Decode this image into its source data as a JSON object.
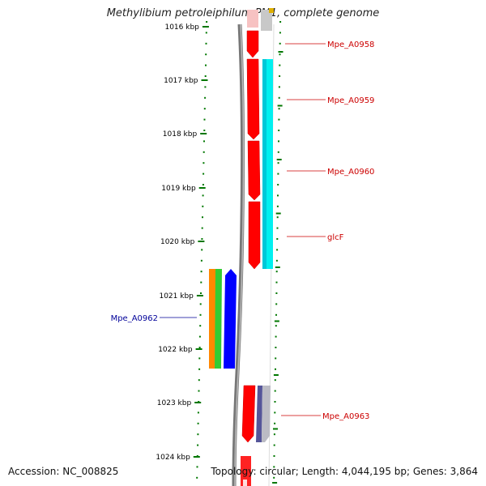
{
  "title": "Methylibium petroleiphilum PM1, complete genome",
  "accession": "Accession: NC_008825",
  "topology": "Topology: circular; Length: 4,044,195 bp; Genes: 3,864",
  "ruler": {
    "labels": [
      "1016 kbp",
      "1017 kbp",
      "1018 kbp",
      "1019 kbp",
      "1020 kbp",
      "1021 kbp",
      "1022 kbp",
      "1023 kbp",
      "1024 kbp"
    ]
  },
  "genes": [
    {
      "label": "Mpe_A0958",
      "color": "#cc0000"
    },
    {
      "label": "Mpe_A0959",
      "color": "#cc0000"
    },
    {
      "label": "Mpe_A0960",
      "color": "#cc0000"
    },
    {
      "label": "glcF",
      "color": "#cc0000"
    },
    {
      "label": "Mpe_A0962",
      "color": "#000099"
    },
    {
      "label": "Mpe_A0963",
      "color": "#cc0000"
    }
  ],
  "colors": {
    "forward_gene": "#ff0000",
    "reverse_gene": "#0000ff",
    "cyan_gene": "#00ffff",
    "orange_gene": "#ff8800",
    "green_gene": "#33cc33",
    "gray_gene": "#b0b0b8",
    "navy_gene": "#333399",
    "tick": "#007700",
    "backbone": "#888888"
  }
}
